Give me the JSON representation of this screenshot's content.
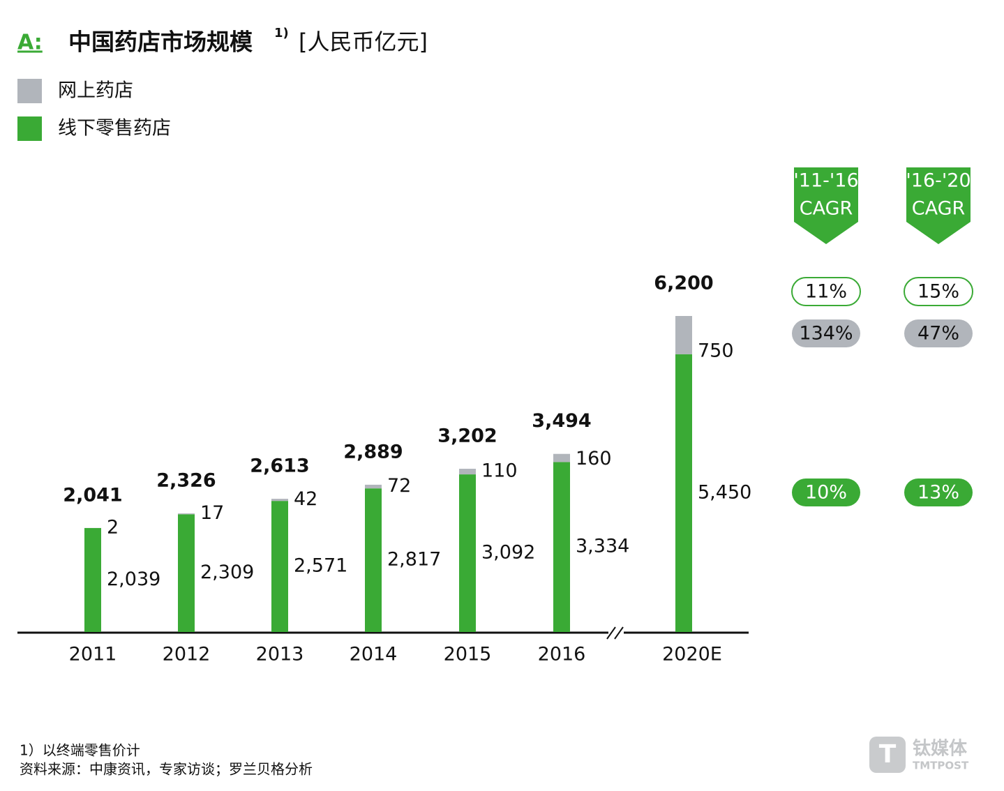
{
  "chart_data": {
    "type": "bar",
    "stacked": true,
    "title_prefix": "A:",
    "title": "中国药店市场规模",
    "title_note": "1)",
    "unit": "[人民币亿元]",
    "categories": [
      "2011",
      "2012",
      "2013",
      "2014",
      "2015",
      "2016",
      "2020E"
    ],
    "series": [
      {
        "name": "线下零售药店",
        "color": "#3aaa35",
        "values": [
          2039,
          2309,
          2571,
          2817,
          3092,
          3334,
          5450
        ],
        "value_labels": [
          "2,039",
          "2,309",
          "2,571",
          "2,817",
          "3,092",
          "3,334",
          "5,450"
        ]
      },
      {
        "name": "网上药店",
        "color": "#b1b5bb",
        "values": [
          2,
          17,
          42,
          72,
          110,
          160,
          750
        ],
        "value_labels": [
          "2",
          "17",
          "42",
          "72",
          "110",
          "160",
          "750"
        ]
      }
    ],
    "totals": {
      "values": [
        2041,
        2326,
        2613,
        2889,
        3202,
        3494,
        6200
      ],
      "value_labels": [
        "2,041",
        "2,326",
        "2,613",
        "2,889",
        "3,202",
        "3,494",
        "6,200"
      ]
    },
    "cagr": [
      {
        "header": [
          "'11-'16",
          "CAGR"
        ],
        "rows": [
          {
            "value": 11,
            "label": "11%"
          },
          {
            "value": 134,
            "label": "134%"
          },
          {
            "value": 10,
            "label": "10%"
          }
        ]
      },
      {
        "header": [
          "'16-'20",
          "CAGR"
        ],
        "rows": [
          {
            "value": 15,
            "label": "15%"
          },
          {
            "value": 47,
            "label": "47%"
          },
          {
            "value": 13,
            "label": "13%"
          }
        ]
      }
    ],
    "footnotes": [
      "1）以终端零售价计",
      "资料来源：中康资讯，专家访谈；罗兰贝格分析"
    ]
  },
  "logo": {
    "text": "钛媒体",
    "subtext": "TMTPOST"
  }
}
